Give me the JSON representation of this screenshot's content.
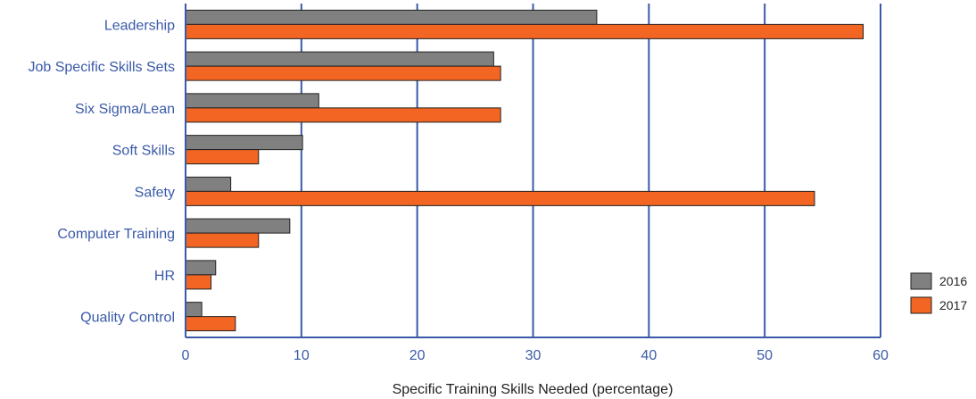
{
  "chart_data": {
    "type": "bar",
    "orientation": "horizontal",
    "categories": [
      "Leadership",
      "Job Specific Skills Sets",
      "Six Sigma/Lean",
      "Soft Skills",
      "Safety",
      "Computer Training",
      "HR",
      "Quality Control"
    ],
    "series": [
      {
        "name": "2016",
        "color": "#808080",
        "values": [
          35.5,
          26.6,
          11.5,
          10.1,
          3.9,
          9.0,
          2.6,
          1.4
        ]
      },
      {
        "name": "2017",
        "color": "#f26522",
        "values": [
          58.5,
          27.2,
          27.2,
          6.3,
          54.3,
          6.3,
          2.2,
          4.3
        ]
      }
    ],
    "title": "",
    "xlabel": "Specific Training Skills Needed (percentage)",
    "ylabel": "",
    "xlim": [
      0,
      60
    ],
    "xticks": [
      0,
      10,
      20,
      30,
      40,
      50,
      60
    ],
    "grid": true,
    "legend": "right",
    "colors": {
      "axis": "#3a5aa8",
      "text": "#3a5aa8"
    }
  }
}
